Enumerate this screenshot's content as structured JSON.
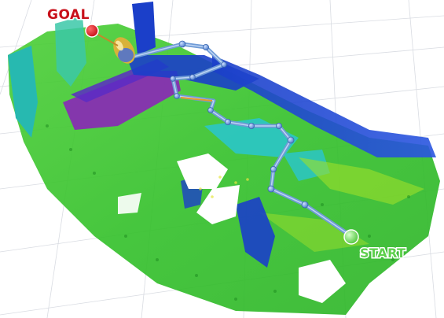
{
  "scene": {
    "goal_label": "GOAL",
    "start_label": "START",
    "colors": {
      "goal_marker": "#e0141e",
      "goal_text": "#c8101a",
      "start_marker": "#7ee36a",
      "start_text": "#5fd04e",
      "label_outline": "#ffffff",
      "path_link": "#6f9bd6",
      "path_node": "#5d8ed4",
      "robot_body": "#d8b23a",
      "grid": "#d9dce2",
      "map_green": "#35c22e",
      "map_yellow_green": "#9fe02a",
      "map_cyan": "#29c6d0",
      "map_blue": "#1b3fc9",
      "map_purple": "#8a27b8"
    }
  }
}
